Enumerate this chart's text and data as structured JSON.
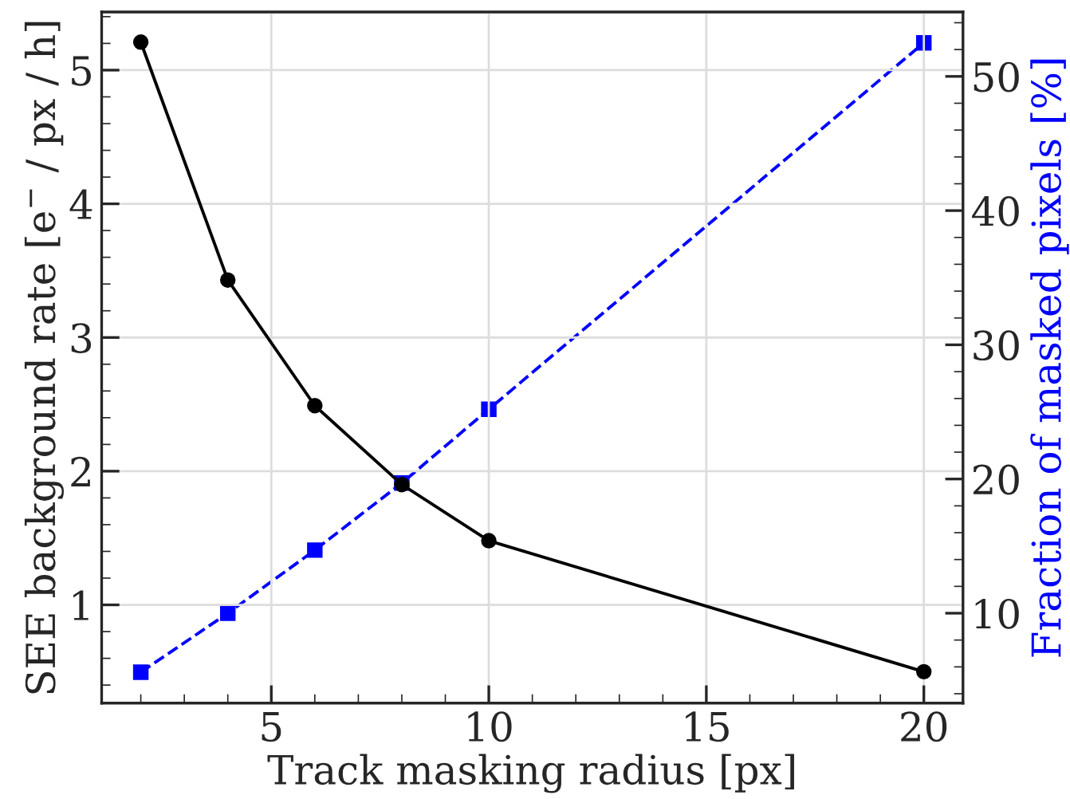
{
  "chart_data": {
    "type": "line",
    "xlabel": "Track masking radius [px]",
    "ylabel": "SEE background rate [e$^{−}$ / px / h]",
    "y2label": "Fraction of masked pixels [%]",
    "x": [
      2,
      4,
      6,
      8,
      10,
      20
    ],
    "series": [
      {
        "color": "#000000",
        "values": [
          5.21,
          3.43,
          2.49,
          1.9,
          1.48,
          0.5
        ],
        "marker": "circle",
        "line_style": "solid"
      },
      {
        "color": "#0000ff",
        "values": [
          5.6,
          10.0,
          14.7,
          19.7,
          25.2,
          52.5
        ],
        "marker": "square",
        "line_style": "dashed",
        "axis": "y2"
      }
    ],
    "xlim": [
      1.1,
      20.9
    ],
    "xticks": [
      5,
      10,
      15,
      20
    ],
    "ylim": [
      0.265,
      5.435
    ],
    "yticks": [
      1,
      2,
      3,
      4,
      5
    ],
    "y2lim": [
      3.3,
      54.8
    ],
    "y2ticks": [
      10,
      20,
      30,
      40,
      50
    ],
    "grid": true,
    "legend": false
  }
}
